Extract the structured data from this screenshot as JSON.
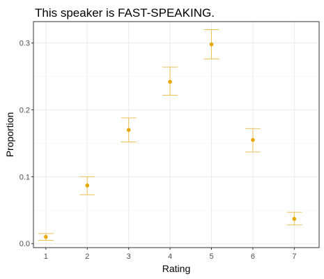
{
  "chart_data": {
    "type": "scatter",
    "title": "This speaker is FAST-SPEAKING.",
    "xlabel": "Rating",
    "ylabel": "Proportion",
    "categories": [
      "1",
      "2",
      "3",
      "4",
      "5",
      "6",
      "7"
    ],
    "series": [
      {
        "values": [
          0.01,
          0.087,
          0.17,
          0.242,
          0.298,
          0.155,
          0.037
        ],
        "error_low": [
          0.005,
          0.073,
          0.152,
          0.222,
          0.276,
          0.137,
          0.028
        ],
        "error_high": [
          0.015,
          0.1,
          0.188,
          0.264,
          0.32,
          0.172,
          0.047
        ]
      }
    ],
    "xlim": [
      0.7,
      7.6
    ],
    "ylim": [
      -0.006,
      0.332
    ],
    "yticks": [
      0.0,
      0.1,
      0.2,
      0.3
    ],
    "ytick_labels": [
      "0.0",
      "0.1",
      "0.2",
      "0.3"
    ],
    "grid": true,
    "colors": {
      "point": "#E6A800",
      "error_bar": "#EBC15A",
      "grid_major": "#EBEBEB",
      "grid_minor": "#F5F5F5",
      "panel_border": "#333333"
    }
  }
}
